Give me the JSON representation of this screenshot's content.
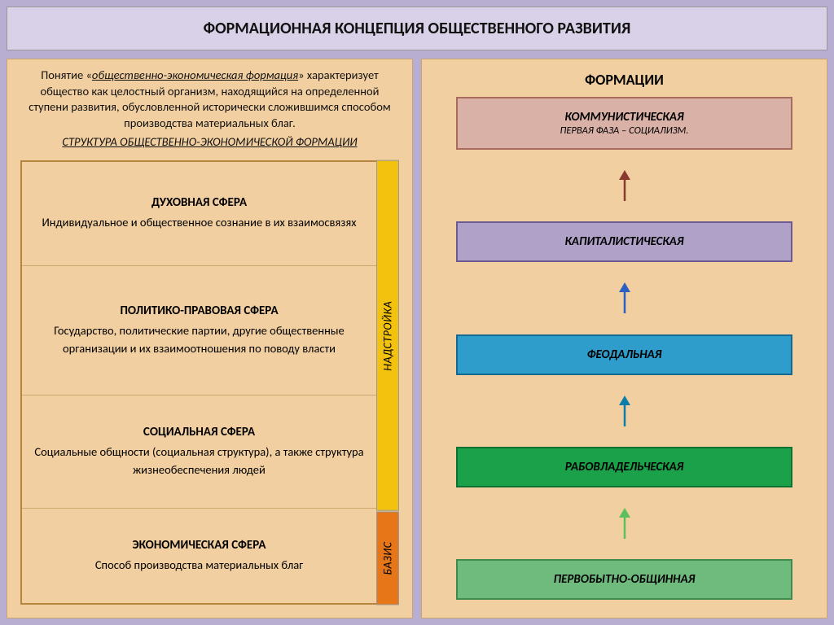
{
  "title": "ФОРМАЦИОННАЯ КОНЦЕПЦИЯ ОБЩЕСТВЕННОГО РАЗВИТИЯ",
  "colors": {
    "page_bg": "#b8aed1",
    "title_bg": "#d9d1e8",
    "panel_bg": "#f2cfa0",
    "panel_border": "#c9a56f",
    "struct_border": "#b5843f",
    "nadstroika_bg": "#f3c20e",
    "bazis_bg": "#e67618"
  },
  "left": {
    "intro_lead": "общественно-экономическая формация",
    "intro_prefix": "Понятие «",
    "intro_suffix": "» характеризует общество как целостный организм, находящийся на определенной ступени развития, обусловленной исторически сложившимся способом производства материальных благ.",
    "sub_title": "СТРУКТУРА ОБЩЕСТВЕННО-ЭКОНОМИЧЕСКОЙ ФОРМАЦИИ",
    "vlabel_top": "НАДСТРОЙКА",
    "vlabel_bot": "БАЗИС",
    "blocks": [
      {
        "title": "ДУХОВНАЯ СФЕРА",
        "desc": "Индивидуальное и общественное сознание в их взаимосвязях"
      },
      {
        "title": "ПОЛИТИКО-ПРАВОВАЯ СФЕРА",
        "desc": "Государство, политические партии, другие общественные организации и их взаимоотношения по поводу власти"
      },
      {
        "title": "СОЦИАЛЬНАЯ СФЕРА",
        "desc": "Социальные общности (социальная структура), а также структура жизнеобеспечения людей"
      },
      {
        "title": "ЭКОНОМИЧЕСКАЯ СФЕРА",
        "desc": "Способ производства материальных благ"
      }
    ]
  },
  "right": {
    "title": "ФОРМАЦИИ",
    "stages": [
      {
        "main": "КОММУНИСТИЧЕСКАЯ",
        "sub": "ПЕРВАЯ ФАЗА – СОЦИАЛИЗМ.",
        "bg": "#d9b1a7",
        "border": "#a86b5d"
      },
      {
        "main": "КАПИТАЛИСТИЧЕСКАЯ",
        "sub": "",
        "bg": "#b0a1c9",
        "border": "#6d5a93"
      },
      {
        "main": "ФЕОДАЛЬНАЯ",
        "sub": "",
        "bg": "#2e9dcc",
        "border": "#15688f"
      },
      {
        "main": "РАБОВЛАДЕЛЬЧЕСКАЯ",
        "sub": "",
        "bg": "#1aa14a",
        "border": "#0c7232"
      },
      {
        "main": "ПЕРВОБЫТНО-ОБЩИННАЯ",
        "sub": "",
        "bg": "#6fbb7e",
        "border": "#3f8a4f"
      }
    ],
    "arrow_colors": [
      "#8a3a2c",
      "#2a5fc4",
      "#0c7da8",
      "#5bbf5b"
    ]
  }
}
